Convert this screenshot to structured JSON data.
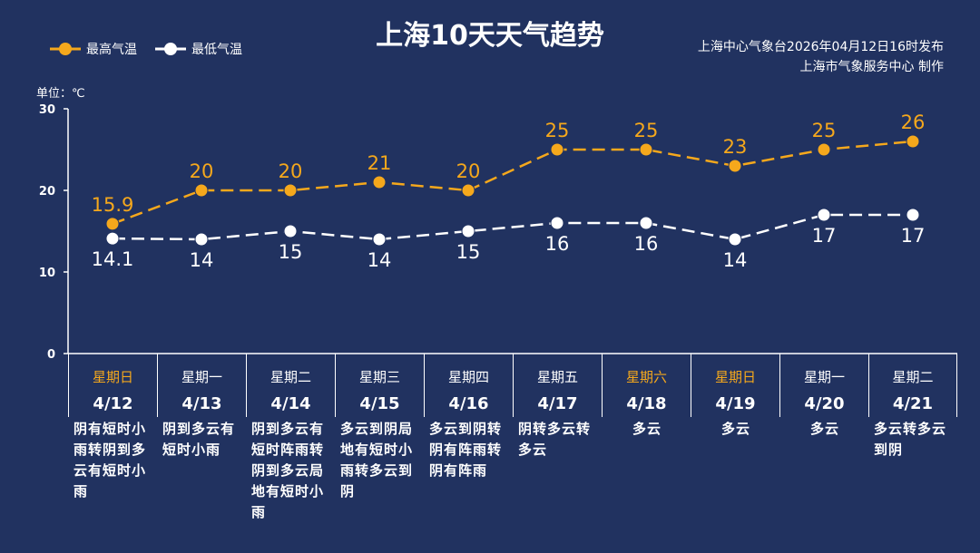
{
  "title": "上海10天天气趋势",
  "issuer": {
    "line1": "上海中心气象台2026年04月12日16时发布",
    "line2": "上海市气象服务中心 制作"
  },
  "unit_label": "单位：℃",
  "colors": {
    "background": "#213260",
    "high": "#f5a81c",
    "low": "#ffffff",
    "weekend": "#f5a81c"
  },
  "chart_data": {
    "type": "line",
    "title": "上海10天天气趋势",
    "ylabel": "单位：℃",
    "ylim": [
      0,
      30
    ],
    "yticks": [
      "0",
      "10",
      "20",
      "30"
    ],
    "grid": false,
    "legend_placement": "top-left",
    "categories": [
      "4/12",
      "4/13",
      "4/14",
      "4/15",
      "4/16",
      "4/17",
      "4/18",
      "4/19",
      "4/20",
      "4/21"
    ],
    "series": [
      {
        "name": "最高气温",
        "values": [
          15.9,
          20,
          20,
          21,
          20,
          25,
          25,
          23,
          25,
          26
        ],
        "labels": [
          "15.9",
          "20",
          "20",
          "21",
          "20",
          "25",
          "25",
          "23",
          "25",
          "26"
        ],
        "color": "#f5a81c",
        "style": "dashed"
      },
      {
        "name": "最低气温",
        "values": [
          14.1,
          14,
          15,
          14,
          15,
          16,
          16,
          14,
          17,
          17
        ],
        "labels": [
          "14.1",
          "14",
          "15",
          "14",
          "15",
          "16",
          "16",
          "14",
          "17",
          "17"
        ],
        "color": "#ffffff",
        "style": "dashed"
      }
    ]
  },
  "days": [
    {
      "weekday": "星期日",
      "date": "4/12",
      "weekend": true,
      "weather": "阴有短时小雨转阴到多云有短时小雨"
    },
    {
      "weekday": "星期一",
      "date": "4/13",
      "weekend": false,
      "weather": "阴到多云有短时小雨"
    },
    {
      "weekday": "星期二",
      "date": "4/14",
      "weekend": false,
      "weather": "阴到多云有短时阵雨转阴到多云局地有短时小雨"
    },
    {
      "weekday": "星期三",
      "date": "4/15",
      "weekend": false,
      "weather": "多云到阴局地有短时小雨转多云到阴"
    },
    {
      "weekday": "星期四",
      "date": "4/16",
      "weekend": false,
      "weather": "多云到阴转阴有阵雨转阴有阵雨"
    },
    {
      "weekday": "星期五",
      "date": "4/17",
      "weekend": false,
      "weather": "阴转多云转多云"
    },
    {
      "weekday": "星期六",
      "date": "4/18",
      "weekend": true,
      "weather": "多云"
    },
    {
      "weekday": "星期日",
      "date": "4/19",
      "weekend": true,
      "weather": "多云"
    },
    {
      "weekday": "星期一",
      "date": "4/20",
      "weekend": false,
      "weather": "多云"
    },
    {
      "weekday": "星期二",
      "date": "4/21",
      "weekend": false,
      "weather": "多云转多云到阴"
    }
  ]
}
